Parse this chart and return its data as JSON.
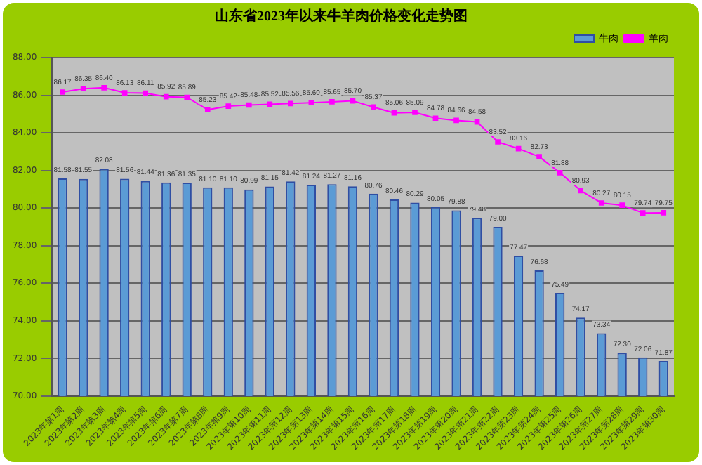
{
  "chart_data": {
    "type": "bar",
    "title": "山东省2023年以来牛羊肉价格变化走势图",
    "categories": [
      "2023年第1周",
      "2023年第2周",
      "2023年第3周",
      "2023年第4周",
      "2023年第5周",
      "2023年第6周",
      "2023年第7周",
      "2023年第8周",
      "2023年第9周",
      "2023年第10周",
      "2023年第11周",
      "2023年第12周",
      "2023年第13周",
      "2023年第14周",
      "2023年第15周",
      "2023年第16周",
      "2023年第17周",
      "2023年第18周",
      "2023年第19周",
      "2023年第20周",
      "2023年第21周",
      "2023年第22周",
      "2023年第23周",
      "2023年第24周",
      "2023年第25周",
      "2023年第26周",
      "2023年第27周",
      "2023年第28周",
      "2023年第29周",
      "2023年第30周"
    ],
    "series": [
      {
        "name": "牛肉",
        "color": "#5b9bd5",
        "values": [
          81.58,
          81.55,
          82.08,
          81.56,
          81.44,
          81.36,
          81.35,
          81.1,
          81.1,
          80.99,
          81.15,
          81.42,
          81.24,
          81.27,
          81.16,
          80.76,
          80.46,
          80.29,
          80.05,
          79.88,
          79.48,
          79.0,
          77.47,
          76.68,
          75.49,
          74.17,
          73.34,
          72.3,
          72.06,
          71.87
        ],
        "value_labels": [
          "81.58",
          "81.55",
          "82.08",
          "81.56",
          "81.44",
          "81.36",
          "81.35",
          "81.10",
          "81.10",
          "80.99",
          "81.15",
          "81.42",
          "81.24",
          "81.27",
          "81.16",
          "80.76",
          "80.46",
          "80.29",
          "80.05",
          "79.88",
          "79.48",
          "79.00",
          "77.47",
          "76.68",
          "75.49",
          "74.17",
          "73.34",
          "72.30",
          "72.06",
          "71.87"
        ]
      },
      {
        "name": "羊肉",
        "type": "line",
        "color": "#ff00ff",
        "values": [
          86.17,
          86.35,
          86.4,
          86.13,
          86.11,
          85.92,
          85.89,
          85.23,
          85.42,
          85.48,
          85.52,
          85.56,
          85.6,
          85.65,
          85.7,
          85.37,
          85.06,
          85.09,
          84.78,
          84.66,
          84.58,
          83.52,
          83.16,
          82.73,
          81.88,
          80.93,
          80.27,
          80.15,
          79.74,
          79.75
        ],
        "value_labels": [
          "86.17",
          "86.35",
          "86.40",
          "86.13",
          "86.11",
          "85.92",
          "85.89",
          "85.23",
          "85.42",
          "85.48",
          "85.52",
          "85.56",
          "85.60",
          "85.65",
          "85.70",
          "85.37",
          "85.06",
          "85.09",
          "84.78",
          "84.66",
          "84.58",
          "83.52",
          "83.16",
          "82.73",
          "81.88",
          "80.93",
          "80.27",
          "80.15",
          "79.74",
          "79.75"
        ]
      }
    ],
    "ylim": [
      70,
      88
    ],
    "yticks": [
      {
        "value": 70,
        "label": "70.00"
      },
      {
        "value": 72,
        "label": "72.00"
      },
      {
        "value": 74,
        "label": "74.00"
      },
      {
        "value": 76,
        "label": "76.00"
      },
      {
        "value": 78,
        "label": "78.00"
      },
      {
        "value": 80,
        "label": "80.00"
      },
      {
        "value": 82,
        "label": "82.00"
      },
      {
        "value": 84,
        "label": "84.00"
      },
      {
        "value": 86,
        "label": "86.00"
      },
      {
        "value": 88,
        "label": "88.00"
      }
    ],
    "grid": "y",
    "legend": "top right",
    "marker": "square"
  }
}
